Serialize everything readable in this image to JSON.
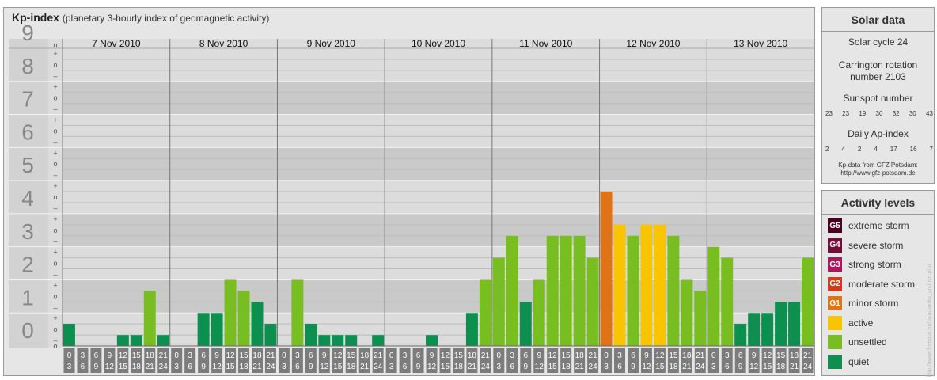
{
  "header": {
    "title": "Kp-index",
    "subtitle": "(planetary 3-hourly index of geomagnetic activity)"
  },
  "chart_data": {
    "type": "bar",
    "ylim": [
      0,
      9
    ],
    "y_ticks": [
      "0",
      "1",
      "2",
      "3",
      "4",
      "5",
      "6",
      "7",
      "8",
      "9"
    ],
    "sub_ticks": [
      "+",
      "o",
      "–"
    ],
    "days": [
      "7 Nov 2010",
      "8 Nov 2010",
      "9 Nov 2010",
      "10 Nov 2010",
      "11 Nov 2010",
      "12 Nov 2010",
      "13 Nov 2010"
    ],
    "interval_labels": [
      [
        "0",
        "3"
      ],
      [
        "3",
        "6"
      ],
      [
        "6",
        "9"
      ],
      [
        "9",
        "12"
      ],
      [
        "12",
        "15"
      ],
      [
        "15",
        "18"
      ],
      [
        "18",
        "21"
      ],
      [
        "21",
        "24"
      ]
    ],
    "values": [
      0.67,
      0,
      0,
      0,
      0.33,
      0.33,
      1.67,
      0.33,
      0,
      0,
      1,
      1,
      2,
      1.67,
      1.33,
      0.67,
      0,
      2,
      0.67,
      0.33,
      0.33,
      0.33,
      0,
      0.33,
      0,
      0,
      0,
      0.33,
      0,
      0,
      1,
      2,
      2.67,
      3.33,
      1.33,
      2,
      3.33,
      3.33,
      3.33,
      2.67,
      4.67,
      3.67,
      3.33,
      3.67,
      3.67,
      3.33,
      2,
      1.67,
      3,
      2.67,
      0.67,
      1,
      1,
      1.33,
      1.33,
      2.67
    ],
    "levels_for_bars": [
      "quiet",
      "quiet",
      "quiet",
      "quiet",
      "quiet",
      "quiet",
      "unsettled",
      "quiet",
      "quiet",
      "quiet",
      "quiet",
      "quiet",
      "unsettled",
      "unsettled",
      "quiet",
      "quiet",
      "quiet",
      "unsettled",
      "quiet",
      "quiet",
      "quiet",
      "quiet",
      "quiet",
      "quiet",
      "quiet",
      "quiet",
      "quiet",
      "quiet",
      "quiet",
      "quiet",
      "quiet",
      "unsettled",
      "unsettled",
      "unsettled",
      "quiet",
      "unsettled",
      "unsettled",
      "unsettled",
      "unsettled",
      "unsettled",
      "minor storm",
      "active",
      "unsettled",
      "active",
      "active",
      "unsettled",
      "unsettled",
      "unsettled",
      "unsettled",
      "unsettled",
      "quiet",
      "quiet",
      "quiet",
      "quiet",
      "quiet",
      "unsettled"
    ],
    "colors": {
      "quiet": "#0d8f4f",
      "unsettled": "#78be20",
      "active": "#f9c400",
      "minor storm": "#e07316",
      "band_dark": "#c9c9c9",
      "band_light": "#dcdcdc",
      "tick_box": "#7c7c7c"
    }
  },
  "solar": {
    "title": "Solar data",
    "cycle": "Solar cycle 24",
    "carrington_line1": "Carrington rotation",
    "carrington_line2": "number 2103",
    "sunspot_title": "Sunspot number",
    "sunspot_values": [
      "23",
      "23",
      "19",
      "30",
      "32",
      "30",
      "43"
    ],
    "ap_title": "Daily Ap-index",
    "ap_values": [
      "2",
      "4",
      "2",
      "4",
      "17",
      "16",
      "7"
    ],
    "credit_line1": "Kp-data from GFZ Potsdam:",
    "credit_line2": "http://www.gfz-potsdam.de"
  },
  "activity": {
    "title": "Activity levels",
    "levels": [
      {
        "code": "G5",
        "label": "extreme storm",
        "color": "#4a0020"
      },
      {
        "code": "G4",
        "label": "severe storm",
        "color": "#7a0a3a"
      },
      {
        "code": "G3",
        "label": "strong storm",
        "color": "#b0145a"
      },
      {
        "code": "G2",
        "label": "moderate storm",
        "color": "#d23a1c"
      },
      {
        "code": "G1",
        "label": "minor storm",
        "color": "#e07316"
      },
      {
        "code": "",
        "label": "active",
        "color": "#f9c400"
      },
      {
        "code": "",
        "label": "unsettled",
        "color": "#78be20"
      },
      {
        "code": "",
        "label": "quiet",
        "color": "#0d8f4f"
      }
    ]
  },
  "vertical_credit": "http://www.freeuse.eu/faraday/kp_archive.php"
}
